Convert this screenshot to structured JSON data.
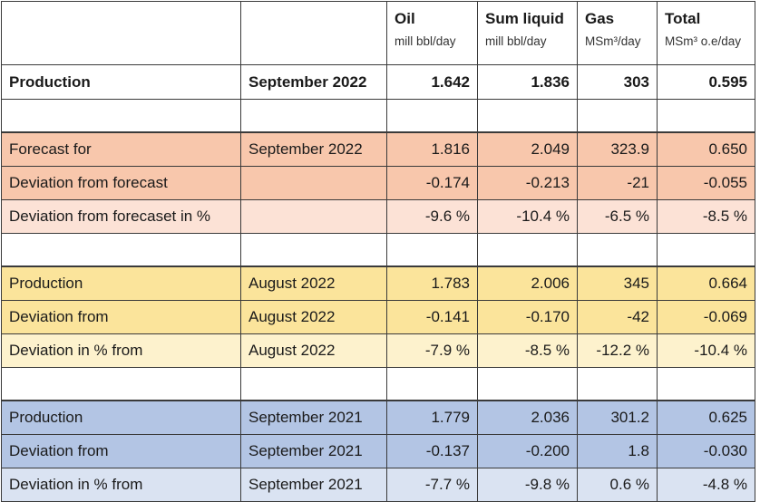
{
  "header": {
    "columns": [
      {
        "title": "Oil",
        "unit": "mill bbl/day"
      },
      {
        "title": "Sum liquid",
        "unit": "mill bbl/day"
      },
      {
        "title": "Gas",
        "unit": "MSm³/day"
      },
      {
        "title": "Total",
        "unit": "MSm³ o.e/day"
      }
    ]
  },
  "production": {
    "label": "Production",
    "period": "September 2022",
    "values": [
      "1.642",
      "1.836",
      "303",
      "0.595"
    ]
  },
  "forecast_section": {
    "rows": [
      {
        "label": "Forecast for",
        "period": "September 2022",
        "values": [
          "1.816",
          "2.049",
          "323.9",
          "0.650"
        ]
      },
      {
        "label": "Deviation from forecast",
        "period": "",
        "values": [
          "-0.174",
          "-0.213",
          "-21",
          "-0.055"
        ]
      },
      {
        "label": "Deviation from forecaset in %",
        "period": "",
        "values": [
          "-9.6 %",
          "-10.4 %",
          "-6.5 %",
          "-8.5 %"
        ]
      }
    ]
  },
  "previous_month_section": {
    "rows": [
      {
        "label": "Production",
        "period": "August 2022",
        "values": [
          "1.783",
          "2.006",
          "345",
          "0.664"
        ]
      },
      {
        "label": "Deviation from",
        "period": "August 2022",
        "values": [
          "-0.141",
          "-0.170",
          "-42",
          "-0.069"
        ]
      },
      {
        "label": "Deviation in % from",
        "period": "August 2022",
        "values": [
          "-7.9 %",
          "-8.5 %",
          "-12.2 %",
          "-10.4 %"
        ]
      }
    ]
  },
  "last_year_section": {
    "rows": [
      {
        "label": "Production",
        "period": "September 2021",
        "values": [
          "1.779",
          "2.036",
          "301.2",
          "0.625"
        ]
      },
      {
        "label": "Deviation from",
        "period": "September 2021",
        "values": [
          "-0.137",
          "-0.200",
          "1.8",
          "-0.030"
        ]
      },
      {
        "label": "Deviation in % from",
        "period": "September 2021",
        "values": [
          "-7.7 %",
          "-9.8 %",
          "0.6 %",
          "-4.8 %"
        ]
      }
    ]
  },
  "colors": {
    "forecast_band": "#f8c7ac",
    "forecast_band_light": "#fce2d6",
    "previous_month_band": "#fbe49b",
    "previous_month_band_light": "#fdf2cd",
    "last_year_band": "#b3c5e4",
    "last_year_band_light": "#dae3f2"
  }
}
